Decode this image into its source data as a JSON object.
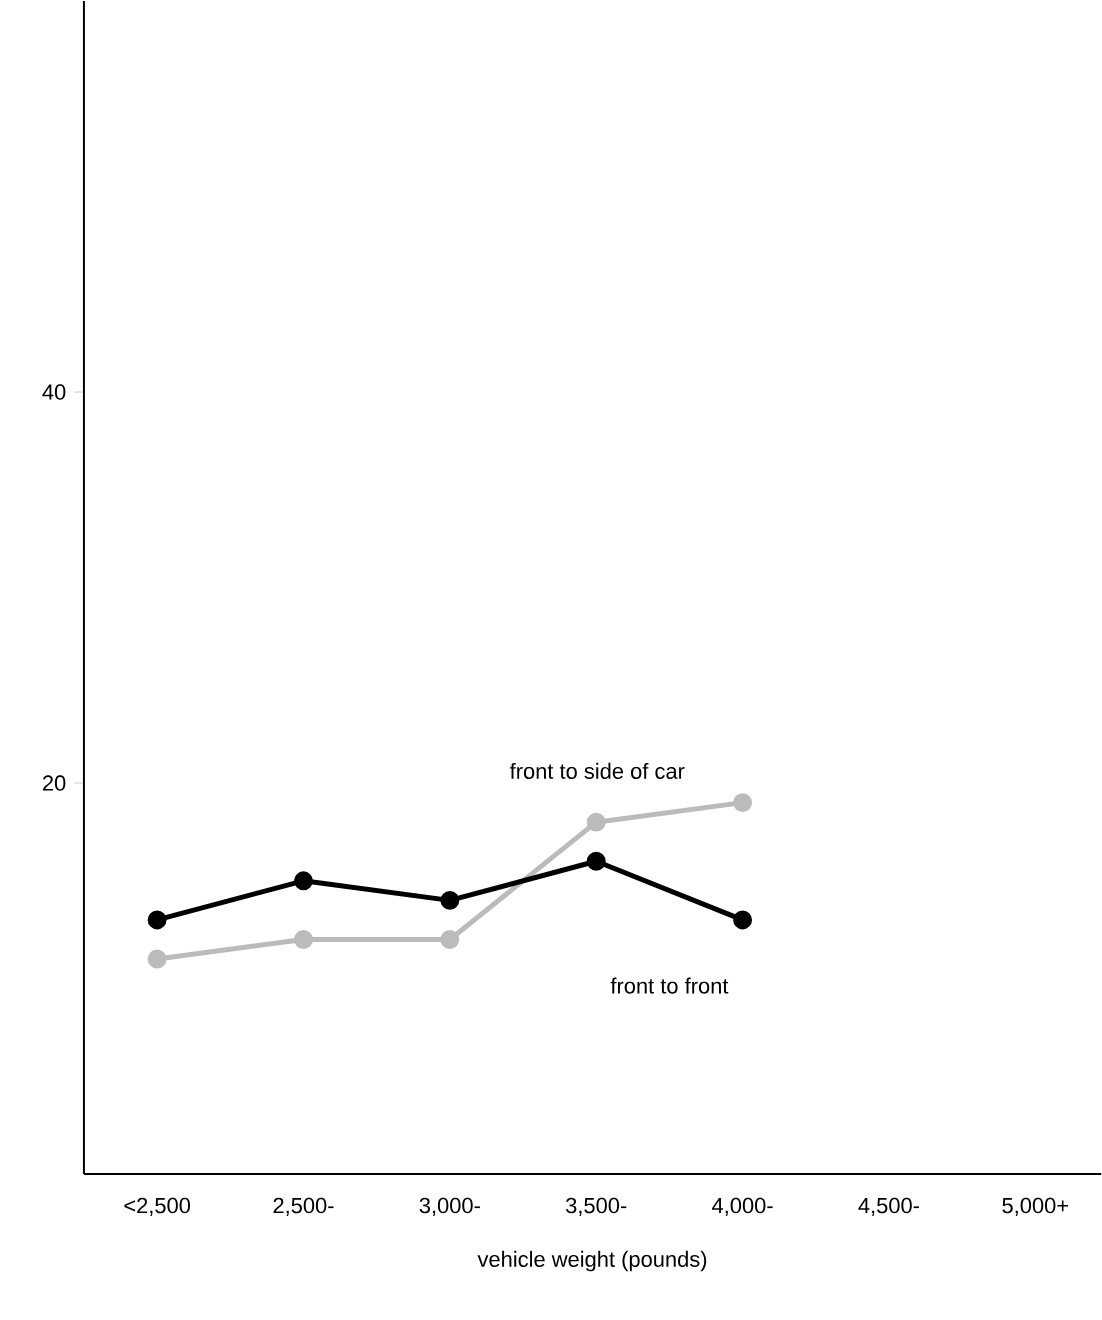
{
  "chart_data": {
    "type": "line",
    "xlabel": "vehicle weight (pounds)",
    "categories": [
      "<2,500",
      "2,500-",
      "3,000-",
      "3,500-",
      "4,000-",
      "4,500-",
      "5,000+"
    ],
    "series": [
      {
        "name": "front to side of car",
        "color": "#bbbbbb",
        "values": [
          11,
          12,
          12,
          18,
          19,
          null,
          null
        ]
      },
      {
        "name": "front to front",
        "color": "#000000",
        "values": [
          13,
          15,
          14,
          16,
          13,
          null,
          null
        ]
      }
    ],
    "ylim": [
      0,
      60
    ],
    "yticks": [
      20,
      40
    ],
    "marker": "circle",
    "legend": false,
    "grid": false
  }
}
